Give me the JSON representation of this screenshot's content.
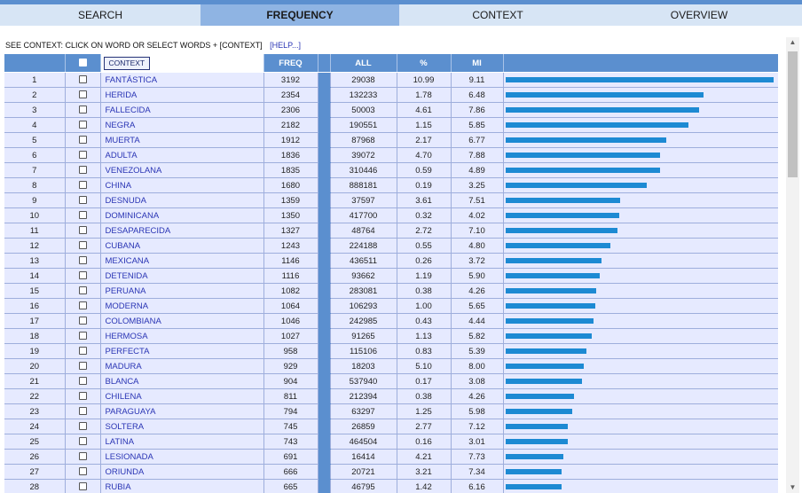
{
  "tabs": [
    {
      "label": "SEARCH",
      "active": false
    },
    {
      "label": "FREQUENCY",
      "active": true
    },
    {
      "label": "CONTEXT",
      "active": false
    },
    {
      "label": "OVERVIEW",
      "active": false
    }
  ],
  "info": {
    "text": "SEE CONTEXT: CLICK ON WORD OR SELECT WORDS + [CONTEXT]",
    "help": "[HELP...]"
  },
  "table": {
    "context_button": "CONTEXT",
    "headers": {
      "freq": "FREQ",
      "all": "ALL",
      "pct": "%",
      "mi": "MI"
    },
    "bar_color": "#1d8ad3",
    "header_color": "#5b8fcf",
    "rows": [
      {
        "n": "1",
        "word": "FANTÁSTICA",
        "freq": "3192",
        "all": "29038",
        "pct": "10.99",
        "mi": "9.11"
      },
      {
        "n": "2",
        "word": "HERIDA",
        "freq": "2354",
        "all": "132233",
        "pct": "1.78",
        "mi": "6.48"
      },
      {
        "n": "3",
        "word": "FALLECIDA",
        "freq": "2306",
        "all": "50003",
        "pct": "4.61",
        "mi": "7.86"
      },
      {
        "n": "4",
        "word": "NEGRA",
        "freq": "2182",
        "all": "190551",
        "pct": "1.15",
        "mi": "5.85"
      },
      {
        "n": "5",
        "word": "MUERTA",
        "freq": "1912",
        "all": "87968",
        "pct": "2.17",
        "mi": "6.77"
      },
      {
        "n": "6",
        "word": "ADULTA",
        "freq": "1836",
        "all": "39072",
        "pct": "4.70",
        "mi": "7.88"
      },
      {
        "n": "7",
        "word": "VENEZOLANA",
        "freq": "1835",
        "all": "310446",
        "pct": "0.59",
        "mi": "4.89"
      },
      {
        "n": "8",
        "word": "CHINA",
        "freq": "1680",
        "all": "888181",
        "pct": "0.19",
        "mi": "3.25"
      },
      {
        "n": "9",
        "word": "DESNUDA",
        "freq": "1359",
        "all": "37597",
        "pct": "3.61",
        "mi": "7.51"
      },
      {
        "n": "10",
        "word": "DOMINICANA",
        "freq": "1350",
        "all": "417700",
        "pct": "0.32",
        "mi": "4.02"
      },
      {
        "n": "11",
        "word": "DESAPARECIDA",
        "freq": "1327",
        "all": "48764",
        "pct": "2.72",
        "mi": "7.10"
      },
      {
        "n": "12",
        "word": "CUBANA",
        "freq": "1243",
        "all": "224188",
        "pct": "0.55",
        "mi": "4.80"
      },
      {
        "n": "13",
        "word": "MEXICANA",
        "freq": "1146",
        "all": "436511",
        "pct": "0.26",
        "mi": "3.72"
      },
      {
        "n": "14",
        "word": "DETENIDA",
        "freq": "1116",
        "all": "93662",
        "pct": "1.19",
        "mi": "5.90"
      },
      {
        "n": "15",
        "word": "PERUANA",
        "freq": "1082",
        "all": "283081",
        "pct": "0.38",
        "mi": "4.26"
      },
      {
        "n": "16",
        "word": "MODERNA",
        "freq": "1064",
        "all": "106293",
        "pct": "1.00",
        "mi": "5.65"
      },
      {
        "n": "17",
        "word": "COLOMBIANA",
        "freq": "1046",
        "all": "242985",
        "pct": "0.43",
        "mi": "4.44"
      },
      {
        "n": "18",
        "word": "HERMOSA",
        "freq": "1027",
        "all": "91265",
        "pct": "1.13",
        "mi": "5.82"
      },
      {
        "n": "19",
        "word": "PERFECTA",
        "freq": "958",
        "all": "115106",
        "pct": "0.83",
        "mi": "5.39"
      },
      {
        "n": "20",
        "word": "MADURA",
        "freq": "929",
        "all": "18203",
        "pct": "5.10",
        "mi": "8.00"
      },
      {
        "n": "21",
        "word": "BLANCA",
        "freq": "904",
        "all": "537940",
        "pct": "0.17",
        "mi": "3.08"
      },
      {
        "n": "22",
        "word": "CHILENA",
        "freq": "811",
        "all": "212394",
        "pct": "0.38",
        "mi": "4.26"
      },
      {
        "n": "23",
        "word": "PARAGUAYA",
        "freq": "794",
        "all": "63297",
        "pct": "1.25",
        "mi": "5.98"
      },
      {
        "n": "24",
        "word": "SOLTERA",
        "freq": "745",
        "all": "26859",
        "pct": "2.77",
        "mi": "7.12"
      },
      {
        "n": "25",
        "word": "LATINA",
        "freq": "743",
        "all": "464504",
        "pct": "0.16",
        "mi": "3.01"
      },
      {
        "n": "26",
        "word": "LESIONADA",
        "freq": "691",
        "all": "16414",
        "pct": "4.21",
        "mi": "7.73"
      },
      {
        "n": "27",
        "word": "ORIUNDA",
        "freq": "666",
        "all": "20721",
        "pct": "3.21",
        "mi": "7.34"
      },
      {
        "n": "28",
        "word": "RUBIA",
        "freq": "665",
        "all": "46795",
        "pct": "1.42",
        "mi": "6.16"
      }
    ]
  },
  "scrollbar": {
    "up_icon": "triangle-up",
    "down_icon": "triangle-down"
  }
}
